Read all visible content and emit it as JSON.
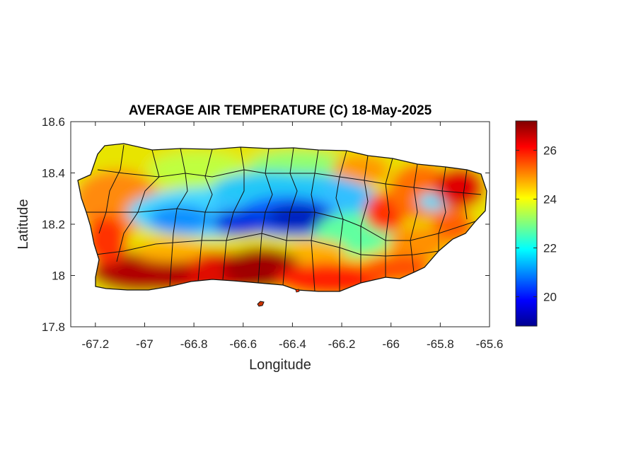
{
  "figure": {
    "title": "AVERAGE AIR TEMPERATURE (C) 18-May-2025",
    "xlabel": "Longitude",
    "ylabel": "Latitude"
  },
  "chart_data": {
    "type": "heatmap",
    "title": "AVERAGE AIR TEMPERATURE (C) 18-May-2025",
    "xlabel": "Longitude",
    "ylabel": "Latitude",
    "xlim": [
      -67.3,
      -65.6
    ],
    "ylim": [
      17.8,
      18.6
    ],
    "xticks": [
      -67.2,
      -67,
      -66.8,
      -66.6,
      -66.4,
      -66.2,
      -66,
      -65.8,
      -65.6
    ],
    "xtick_labels": [
      "-67.2",
      "-67",
      "-66.8",
      "-66.6",
      "-66.4",
      "-66.2",
      "-66",
      "-65.8",
      "-65.6"
    ],
    "yticks": [
      17.8,
      18,
      18.2,
      18.4,
      18.6
    ],
    "ytick_labels": [
      "17.8",
      "18",
      "18.2",
      "18.4",
      "18.6"
    ],
    "colorbar": {
      "colormap": "jet",
      "range": [
        18.8,
        27.2
      ],
      "ticks": [
        20,
        22,
        24,
        26
      ],
      "tick_labels": [
        "20",
        "22",
        "24",
        "26"
      ]
    },
    "grid": false,
    "approx_values": {
      "south_coast": 27,
      "west_coast": 25,
      "north_coast_west": 24,
      "central_mountains": 19.8,
      "central_north": 22,
      "east_interior": 23,
      "northeast_coast": 26.5,
      "caguas_area": 26
    }
  }
}
